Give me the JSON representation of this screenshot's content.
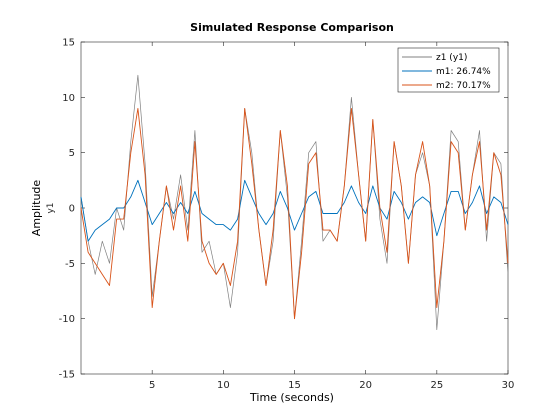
{
  "chart_data": {
    "type": "line",
    "title": "Simulated Response Comparison",
    "xlabel": "Time (seconds)",
    "ylabel": "Amplitude",
    "ylabel_sub": "y1",
    "xlim": [
      0,
      30
    ],
    "ylim": [
      -15,
      15
    ],
    "xticks": [
      5,
      10,
      15,
      20,
      25,
      30
    ],
    "yticks": [
      -15,
      -10,
      -5,
      0,
      5,
      10,
      15
    ],
    "grid": false,
    "legend_position": "top-right",
    "series": [
      {
        "name": "z1 (y1)",
        "color": "#808080",
        "x": [
          0,
          0.5,
          1,
          1.5,
          2,
          2.5,
          3,
          3.5,
          4,
          4.5,
          5,
          5.5,
          6,
          6.5,
          7,
          7.5,
          8,
          8.5,
          9,
          9.5,
          10,
          10.5,
          11,
          11.5,
          12,
          12.5,
          13,
          13.5,
          14,
          14.5,
          15,
          15.5,
          16,
          16.5,
          17,
          17.5,
          18,
          18.5,
          19,
          19.5,
          20,
          20.5,
          21,
          21.5,
          22,
          22.5,
          23,
          23.5,
          24,
          24.5,
          25,
          25.5,
          26,
          26.5,
          27,
          27.5,
          28,
          28.5,
          29,
          29.5,
          30
        ],
        "y": [
          1,
          -3,
          -6,
          -3,
          -5,
          0,
          -2,
          6,
          12,
          4,
          -8,
          -3,
          2,
          -1,
          3,
          -2,
          7,
          -4,
          -3,
          -6,
          -5,
          -9,
          -4,
          9,
          5,
          -2,
          -7,
          -3,
          7,
          1,
          -10,
          -3,
          5,
          6,
          -3,
          -2,
          -3,
          2,
          10,
          3,
          -3,
          8,
          -1,
          -5,
          6,
          2,
          -5,
          3,
          5,
          2,
          -11,
          -3,
          7,
          6,
          -2,
          3,
          7,
          -3,
          5,
          4,
          -6
        ]
      },
      {
        "name": "m1: 26.74%",
        "color": "#0072BD",
        "x": [
          0,
          0.5,
          1,
          1.5,
          2,
          2.5,
          3,
          3.5,
          4,
          4.5,
          5,
          5.5,
          6,
          6.5,
          7,
          7.5,
          8,
          8.5,
          9,
          9.5,
          10,
          10.5,
          11,
          11.5,
          12,
          12.5,
          13,
          13.5,
          14,
          14.5,
          15,
          15.5,
          16,
          16.5,
          17,
          17.5,
          18,
          18.5,
          19,
          19.5,
          20,
          20.5,
          21,
          21.5,
          22,
          22.5,
          23,
          23.5,
          24,
          24.5,
          25,
          25.5,
          26,
          26.5,
          27,
          27.5,
          28,
          28.5,
          29,
          29.5,
          30
        ],
        "y": [
          1,
          -3,
          -2,
          -1.5,
          -1,
          0,
          0,
          1,
          2.5,
          0.5,
          -1.5,
          -0.5,
          0.5,
          -0.5,
          0.5,
          -0.5,
          1.5,
          -0.5,
          -1,
          -1.5,
          -1.5,
          -2,
          -1,
          2.5,
          1,
          -0.5,
          -1.5,
          -0.5,
          1.5,
          0,
          -2,
          -0.5,
          1,
          1.5,
          -0.5,
          -0.5,
          -0.5,
          0.5,
          2,
          0.5,
          -0.5,
          2,
          0,
          -1,
          1.5,
          0.5,
          -1,
          0.5,
          1,
          0.5,
          -2.5,
          -0.5,
          1.5,
          1.5,
          -0.5,
          0.5,
          2,
          -0.5,
          1,
          0.5,
          -1.5
        ]
      },
      {
        "name": "m2: 70.17%",
        "color": "#D95319",
        "x": [
          0,
          0.5,
          1,
          1.5,
          2,
          2.5,
          3,
          3.5,
          4,
          4.5,
          5,
          5.5,
          6,
          6.5,
          7,
          7.5,
          8,
          8.5,
          9,
          9.5,
          10,
          10.5,
          11,
          11.5,
          12,
          12.5,
          13,
          13.5,
          14,
          14.5,
          15,
          15.5,
          16,
          16.5,
          17,
          17.5,
          18,
          18.5,
          19,
          19.5,
          20,
          20.5,
          21,
          21.5,
          22,
          22.5,
          23,
          23.5,
          24,
          24.5,
          25,
          25.5,
          26,
          26.5,
          27,
          27.5,
          28,
          28.5,
          29,
          29.5,
          30
        ],
        "y": [
          0,
          -4,
          -5,
          -6,
          -7,
          -1,
          -1,
          5,
          9,
          3,
          -9,
          -3,
          2,
          -2,
          2,
          -3,
          6,
          -3,
          -5,
          -6,
          -5,
          -7,
          -3,
          9,
          4,
          -2,
          -7,
          -2,
          7,
          2,
          -10,
          -4,
          4,
          5,
          -2,
          -2,
          -3,
          2,
          9,
          3,
          -3,
          8,
          0,
          -4,
          6,
          2,
          -5,
          3,
          6,
          2,
          -9,
          -3,
          6,
          5,
          -2,
          3,
          6,
          -2,
          5,
          3,
          -5
        ]
      }
    ]
  }
}
